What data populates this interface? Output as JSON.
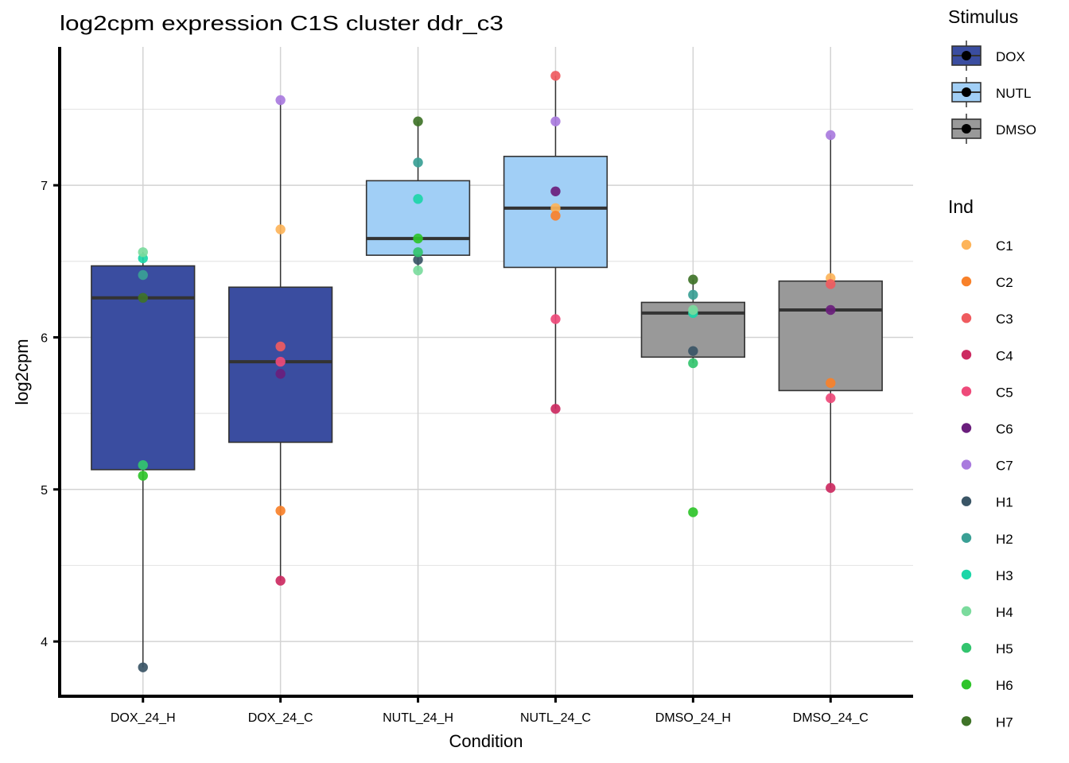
{
  "chart_data": {
    "type": "box",
    "title": "log2cpm expression C1S cluster ddr_c3",
    "xlabel": "Condition",
    "ylabel": "log2cpm",
    "ylim": [
      3.64,
      7.91
    ],
    "yticks": [
      4,
      5,
      6,
      7
    ],
    "ytick_labels": [
      "4",
      "5",
      "6",
      "7"
    ],
    "minor_yticks": [
      4.5,
      5.5,
      6.5,
      7.5
    ],
    "grid": true,
    "categories": [
      "DOX_24_H",
      "DOX_24_C",
      "NUTL_24_H",
      "NUTL_24_C",
      "DMSO_24_H",
      "DMSO_24_C"
    ],
    "boxes": [
      {
        "category": "DOX_24_H",
        "stimulus": "DOX",
        "whisker_low": 3.83,
        "q1": 5.13,
        "median": 6.26,
        "q3": 6.47,
        "whisker_high": 6.56
      },
      {
        "category": "DOX_24_C",
        "stimulus": "DOX",
        "whisker_low": 4.4,
        "q1": 5.31,
        "median": 5.84,
        "q3": 6.33,
        "whisker_high": 7.56
      },
      {
        "category": "NUTL_24_H",
        "stimulus": "NUTL",
        "whisker_low": 6.44,
        "q1": 6.54,
        "median": 6.65,
        "q3": 7.03,
        "whisker_high": 7.42
      },
      {
        "category": "NUTL_24_C",
        "stimulus": "NUTL",
        "whisker_low": 5.53,
        "q1": 6.46,
        "median": 6.85,
        "q3": 7.19,
        "whisker_high": 7.72
      },
      {
        "category": "DMSO_24_H",
        "stimulus": "DMSO",
        "whisker_low": 5.83,
        "q1": 5.87,
        "median": 6.16,
        "q3": 6.23,
        "whisker_high": 6.38
      },
      {
        "category": "DMSO_24_C",
        "stimulus": "DMSO",
        "whisker_low": 5.01,
        "q1": 5.65,
        "median": 6.18,
        "q3": 6.37,
        "whisker_high": 7.33
      }
    ],
    "points": [
      {
        "category": "DOX_24_H",
        "values": {
          "H1": 3.83,
          "H2": 6.41,
          "H3": 6.52,
          "H4": 6.56,
          "H5": 5.16,
          "H6": 5.09,
          "H7": 6.26
        }
      },
      {
        "category": "DOX_24_C",
        "values": {
          "C1": 6.71,
          "C2": 4.86,
          "C3": 5.94,
          "C4": 4.4,
          "C5": 5.84,
          "C6": 5.76,
          "C7": 7.56
        }
      },
      {
        "category": "NUTL_24_H",
        "values": {
          "H1": 6.51,
          "H2": 7.15,
          "H3": 6.91,
          "H4": 6.44,
          "H5": 6.56,
          "H6": 6.65,
          "H7": 7.42
        }
      },
      {
        "category": "NUTL_24_C",
        "values": {
          "C1": 6.85,
          "C2": 6.8,
          "C3": 7.72,
          "C4": 5.53,
          "C5": 6.12,
          "C6": 6.96,
          "C7": 7.42
        }
      },
      {
        "category": "DMSO_24_H",
        "values": {
          "H1": 5.91,
          "H2": 6.28,
          "H3": 6.16,
          "H4": 6.18,
          "H5": 5.83,
          "H6": 4.85,
          "H7": 6.38
        }
      },
      {
        "category": "DMSO_24_C",
        "values": {
          "C1": 6.39,
          "C2": 5.7,
          "C3": 6.35,
          "C4": 5.01,
          "C5": 5.6,
          "C6": 6.18,
          "C7": 7.33
        }
      }
    ],
    "legend_stimulus": {
      "title": "Stimulus",
      "placement": "right",
      "items": [
        {
          "label": "DOX",
          "color": "#3A4DA0"
        },
        {
          "label": "NUTL",
          "color": "#A1CFF6"
        },
        {
          "label": "DMSO",
          "color": "#999999"
        }
      ]
    },
    "legend_ind": {
      "title": "Ind",
      "placement": "right",
      "items": [
        {
          "label": "C1",
          "color": "#FDB45A"
        },
        {
          "label": "C2",
          "color": "#F8812A"
        },
        {
          "label": "C3",
          "color": "#EF5B5F"
        },
        {
          "label": "C4",
          "color": "#CC2A61"
        },
        {
          "label": "C5",
          "color": "#EE4A7A"
        },
        {
          "label": "C6",
          "color": "#6A1E7C"
        },
        {
          "label": "C7",
          "color": "#A97BDE"
        },
        {
          "label": "H1",
          "color": "#3A5566"
        },
        {
          "label": "H2",
          "color": "#3AA095"
        },
        {
          "label": "H3",
          "color": "#1CD6A8"
        },
        {
          "label": "H4",
          "color": "#7BDB9D"
        },
        {
          "label": "H5",
          "color": "#33C46E"
        },
        {
          "label": "H6",
          "color": "#2FC42A"
        },
        {
          "label": "H7",
          "color": "#3F7328"
        }
      ]
    },
    "colors": {
      "box_outline": "#333333",
      "grid_major": "#D3D3D3",
      "grid_minor": "#E6E6E6",
      "axis": "#000000"
    }
  }
}
